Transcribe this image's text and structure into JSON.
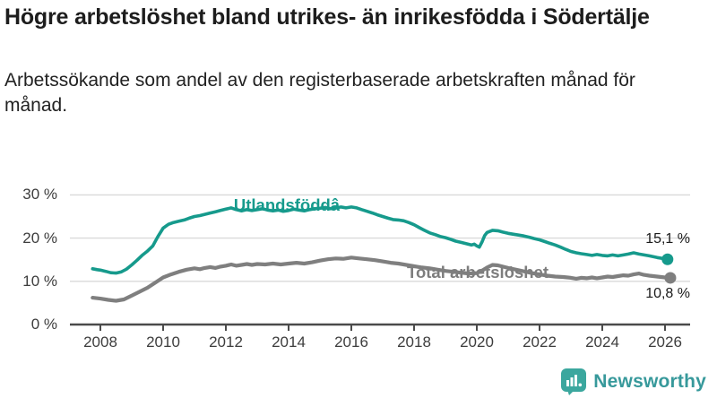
{
  "header": {
    "title": "Högre arbetslöshet bland utrikes- än inrikesfödda i Södertälje",
    "subtitle": "Arbetssökande som andel av den registerbaserade arbetskraften månad för månad."
  },
  "chart_data": {
    "type": "line",
    "title": "Högre arbetslöshet bland utrikes- än inrikesfödda i Södertälje",
    "subtitle": "Arbetssökande som andel av den registerbaserade arbetskraften månad för månad.",
    "grid": "horizontal",
    "legend_position": "inline-labels-on-lines",
    "x_axis": {
      "ticks": [
        2008,
        2010,
        2012,
        2014,
        2016,
        2018,
        2020,
        2022,
        2024,
        2026
      ],
      "range": [
        2007.7,
        2026.9
      ]
    },
    "y_axis": {
      "values": [
        0,
        10,
        20,
        30
      ],
      "tick_labels": [
        "0 %",
        "10 %",
        "20 %",
        "30 %"
      ],
      "range": [
        0,
        32
      ],
      "unit": "%"
    },
    "series": [
      {
        "name": "Utlandsföddâ",
        "color": "#169a8c",
        "end_label": "15,1 %",
        "end_value": 15.1,
        "points": [
          [
            2007.75,
            12.9
          ],
          [
            2007.9,
            12.7
          ],
          [
            2008.0,
            12.6
          ],
          [
            2008.17,
            12.3
          ],
          [
            2008.33,
            12.0
          ],
          [
            2008.5,
            11.9
          ],
          [
            2008.67,
            12.2
          ],
          [
            2008.83,
            12.8
          ],
          [
            2009.0,
            13.8
          ],
          [
            2009.17,
            14.9
          ],
          [
            2009.33,
            16.0
          ],
          [
            2009.5,
            17.0
          ],
          [
            2009.67,
            18.2
          ],
          [
            2009.83,
            20.3
          ],
          [
            2010.0,
            22.3
          ],
          [
            2010.17,
            23.2
          ],
          [
            2010.33,
            23.6
          ],
          [
            2010.5,
            23.9
          ],
          [
            2010.67,
            24.2
          ],
          [
            2010.83,
            24.6
          ],
          [
            2011.0,
            25.0
          ],
          [
            2011.17,
            25.2
          ],
          [
            2011.33,
            25.5
          ],
          [
            2011.5,
            25.8
          ],
          [
            2011.67,
            26.1
          ],
          [
            2011.83,
            26.4
          ],
          [
            2012.0,
            26.7
          ],
          [
            2012.17,
            27.0
          ],
          [
            2012.33,
            26.6
          ],
          [
            2012.5,
            26.3
          ],
          [
            2012.67,
            26.6
          ],
          [
            2012.83,
            26.4
          ],
          [
            2013.0,
            26.6
          ],
          [
            2013.17,
            26.8
          ],
          [
            2013.33,
            26.5
          ],
          [
            2013.5,
            26.3
          ],
          [
            2013.67,
            26.5
          ],
          [
            2013.83,
            26.2
          ],
          [
            2014.0,
            26.4
          ],
          [
            2014.17,
            26.7
          ],
          [
            2014.33,
            26.5
          ],
          [
            2014.5,
            26.3
          ],
          [
            2014.67,
            26.6
          ],
          [
            2014.83,
            26.8
          ],
          [
            2015.0,
            26.9
          ],
          [
            2015.17,
            27.1
          ],
          [
            2015.33,
            26.8
          ],
          [
            2015.5,
            27.0
          ],
          [
            2015.67,
            27.2
          ],
          [
            2015.83,
            27.0
          ],
          [
            2016.0,
            27.2
          ],
          [
            2016.17,
            27.0
          ],
          [
            2016.33,
            26.6
          ],
          [
            2016.5,
            26.2
          ],
          [
            2016.67,
            25.8
          ],
          [
            2016.83,
            25.4
          ],
          [
            2017.0,
            25.0
          ],
          [
            2017.17,
            24.6
          ],
          [
            2017.33,
            24.3
          ],
          [
            2017.5,
            24.2
          ],
          [
            2017.67,
            24.0
          ],
          [
            2017.83,
            23.6
          ],
          [
            2018.0,
            23.1
          ],
          [
            2018.17,
            22.4
          ],
          [
            2018.33,
            21.8
          ],
          [
            2018.5,
            21.2
          ],
          [
            2018.67,
            20.8
          ],
          [
            2018.83,
            20.4
          ],
          [
            2019.0,
            20.1
          ],
          [
            2019.17,
            19.7
          ],
          [
            2019.33,
            19.3
          ],
          [
            2019.5,
            19.0
          ],
          [
            2019.67,
            18.7
          ],
          [
            2019.83,
            18.4
          ],
          [
            2019.92,
            18.6
          ],
          [
            2020.0,
            18.2
          ],
          [
            2020.08,
            17.9
          ],
          [
            2020.17,
            19.2
          ],
          [
            2020.25,
            20.6
          ],
          [
            2020.33,
            21.3
          ],
          [
            2020.5,
            21.8
          ],
          [
            2020.67,
            21.7
          ],
          [
            2020.83,
            21.4
          ],
          [
            2021.0,
            21.1
          ],
          [
            2021.17,
            20.9
          ],
          [
            2021.33,
            20.7
          ],
          [
            2021.5,
            20.5
          ],
          [
            2021.67,
            20.2
          ],
          [
            2021.83,
            19.9
          ],
          [
            2022.0,
            19.6
          ],
          [
            2022.17,
            19.2
          ],
          [
            2022.33,
            18.8
          ],
          [
            2022.5,
            18.4
          ],
          [
            2022.67,
            17.9
          ],
          [
            2022.83,
            17.4
          ],
          [
            2023.0,
            16.9
          ],
          [
            2023.17,
            16.6
          ],
          [
            2023.33,
            16.4
          ],
          [
            2023.5,
            16.2
          ],
          [
            2023.67,
            16.0
          ],
          [
            2023.83,
            16.2
          ],
          [
            2024.0,
            16.0
          ],
          [
            2024.17,
            15.9
          ],
          [
            2024.33,
            16.1
          ],
          [
            2024.5,
            15.9
          ],
          [
            2024.67,
            16.1
          ],
          [
            2024.83,
            16.3
          ],
          [
            2025.0,
            16.6
          ],
          [
            2025.17,
            16.3
          ],
          [
            2025.5,
            15.9
          ],
          [
            2025.75,
            15.5
          ],
          [
            2026.0,
            15.2
          ],
          [
            2026.08,
            15.1
          ]
        ]
      },
      {
        "name": "Total arbetslöshet",
        "color": "#7f7f7f",
        "end_label": "10,8 %",
        "end_value": 10.8,
        "points": [
          [
            2007.75,
            6.2
          ],
          [
            2008.0,
            6.0
          ],
          [
            2008.25,
            5.7
          ],
          [
            2008.5,
            5.5
          ],
          [
            2008.75,
            5.8
          ],
          [
            2009.0,
            6.7
          ],
          [
            2009.25,
            7.6
          ],
          [
            2009.5,
            8.5
          ],
          [
            2009.75,
            9.7
          ],
          [
            2010.0,
            10.9
          ],
          [
            2010.25,
            11.6
          ],
          [
            2010.5,
            12.2
          ],
          [
            2010.75,
            12.7
          ],
          [
            2011.0,
            13.0
          ],
          [
            2011.17,
            12.8
          ],
          [
            2011.33,
            13.1
          ],
          [
            2011.5,
            13.3
          ],
          [
            2011.67,
            13.1
          ],
          [
            2011.83,
            13.4
          ],
          [
            2012.0,
            13.6
          ],
          [
            2012.17,
            13.9
          ],
          [
            2012.33,
            13.6
          ],
          [
            2012.5,
            13.8
          ],
          [
            2012.67,
            14.0
          ],
          [
            2012.83,
            13.8
          ],
          [
            2013.0,
            14.0
          ],
          [
            2013.25,
            13.9
          ],
          [
            2013.5,
            14.1
          ],
          [
            2013.75,
            13.9
          ],
          [
            2014.0,
            14.1
          ],
          [
            2014.25,
            14.3
          ],
          [
            2014.5,
            14.1
          ],
          [
            2014.75,
            14.4
          ],
          [
            2015.0,
            14.8
          ],
          [
            2015.25,
            15.1
          ],
          [
            2015.5,
            15.3
          ],
          [
            2015.75,
            15.2
          ],
          [
            2016.0,
            15.5
          ],
          [
            2016.25,
            15.3
          ],
          [
            2016.5,
            15.1
          ],
          [
            2016.75,
            14.9
          ],
          [
            2017.0,
            14.6
          ],
          [
            2017.25,
            14.3
          ],
          [
            2017.5,
            14.1
          ],
          [
            2017.75,
            13.8
          ],
          [
            2018.0,
            13.5
          ],
          [
            2018.25,
            13.2
          ],
          [
            2018.5,
            13.0
          ],
          [
            2018.75,
            12.7
          ],
          [
            2019.0,
            12.4
          ],
          [
            2019.25,
            12.2
          ],
          [
            2019.5,
            12.0
          ],
          [
            2019.75,
            11.8
          ],
          [
            2020.0,
            11.9
          ],
          [
            2020.17,
            12.5
          ],
          [
            2020.33,
            13.2
          ],
          [
            2020.5,
            13.8
          ],
          [
            2020.67,
            13.7
          ],
          [
            2020.83,
            13.4
          ],
          [
            2021.0,
            13.1
          ],
          [
            2021.25,
            12.7
          ],
          [
            2021.5,
            12.3
          ],
          [
            2021.75,
            11.9
          ],
          [
            2022.0,
            11.6
          ],
          [
            2022.25,
            11.3
          ],
          [
            2022.5,
            11.1
          ],
          [
            2022.75,
            11.0
          ],
          [
            2023.0,
            10.8
          ],
          [
            2023.17,
            10.6
          ],
          [
            2023.33,
            10.8
          ],
          [
            2023.5,
            10.7
          ],
          [
            2023.67,
            10.9
          ],
          [
            2023.83,
            10.7
          ],
          [
            2024.0,
            10.9
          ],
          [
            2024.17,
            11.1
          ],
          [
            2024.33,
            11.0
          ],
          [
            2024.5,
            11.2
          ],
          [
            2024.67,
            11.4
          ],
          [
            2024.83,
            11.3
          ],
          [
            2025.0,
            11.6
          ],
          [
            2025.17,
            11.8
          ],
          [
            2025.33,
            11.5
          ],
          [
            2025.5,
            11.3
          ],
          [
            2025.75,
            11.1
          ],
          [
            2026.0,
            10.9
          ],
          [
            2026.17,
            10.8
          ]
        ]
      }
    ],
    "colors": {
      "grid": "#d9d9d9",
      "axis": "#4a4a4a",
      "tick_text": "#3d3d3d"
    }
  },
  "footer": {
    "brand": "Newsworthy",
    "brand_icon": "bar-chart-speech-bubble-icon",
    "brand_icon_color": "#3ba79e",
    "brand_text_color": "#37999b"
  }
}
